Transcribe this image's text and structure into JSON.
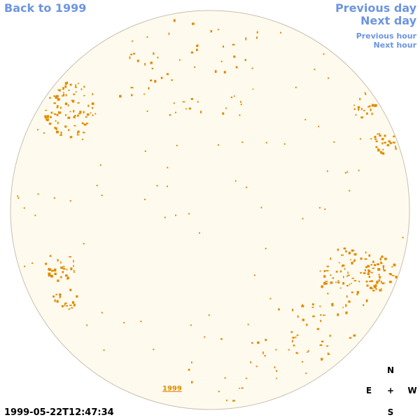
{
  "nav": {
    "back": "Back to 1999",
    "previous_day": "Previous day",
    "next_day": "Next day",
    "previous_hour": "Previous hour",
    "next_hour": "Next hour"
  },
  "year_label": "1999",
  "timestamp": "1999-05-22T12:47:34",
  "compass": {
    "north": "N",
    "east": "E",
    "center": "+",
    "west": "W",
    "south": "S"
  },
  "colors": {
    "link": "#6d95e0",
    "disk_fill": "#fffaee",
    "disk_border": "#c8c0b0",
    "active_region": "#e08a00"
  }
}
